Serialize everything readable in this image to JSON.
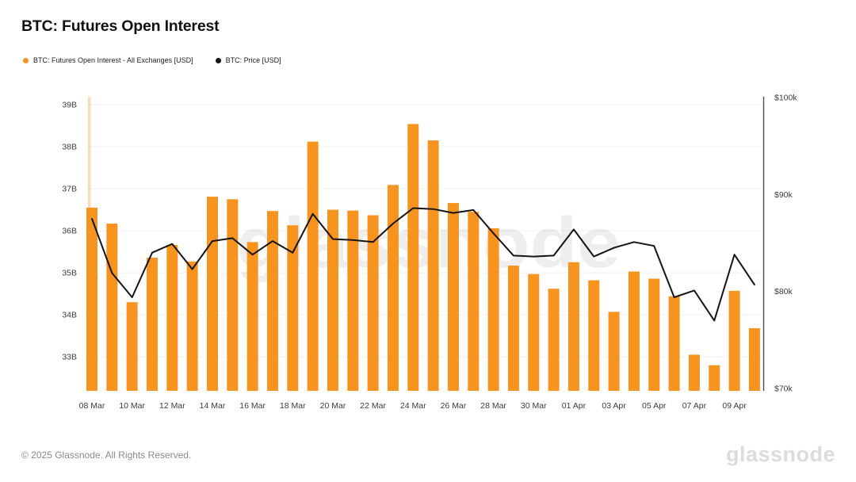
{
  "title": "BTC: Futures Open Interest",
  "legend": {
    "items": [
      {
        "label": "BTC: Futures Open Interest - All Exchanges [USD]",
        "color": "#f79420"
      },
      {
        "label": "BTC: Price [USD]",
        "color": "#141414"
      }
    ]
  },
  "watermark": {
    "text": "glassnode"
  },
  "footer": {
    "copyright": "© 2025 Glassnode. All Rights Reserved.",
    "wordmark": "glassnode"
  },
  "chart_data": {
    "type": "bar+line",
    "title": "BTC: Futures Open Interest",
    "grid": "horizontal",
    "legend_position": "top-left",
    "x_tick_every": 2,
    "categories": [
      "08 Mar",
      "09 Mar",
      "10 Mar",
      "11 Mar",
      "12 Mar",
      "13 Mar",
      "14 Mar",
      "15 Mar",
      "16 Mar",
      "17 Mar",
      "18 Mar",
      "19 Mar",
      "20 Mar",
      "21 Mar",
      "22 Mar",
      "23 Mar",
      "24 Mar",
      "25 Mar",
      "26 Mar",
      "27 Mar",
      "28 Mar",
      "29 Mar",
      "30 Mar",
      "31 Mar",
      "01 Apr",
      "02 Apr",
      "03 Apr",
      "04 Apr",
      "05 Apr",
      "06 Apr",
      "07 Apr",
      "08 Apr",
      "09 Apr",
      "10 Apr"
    ],
    "series": [
      {
        "name": "BTC: Futures Open Interest - All Exchanges [USD]",
        "type": "bar",
        "axis": "left",
        "unit": "billions USD",
        "color": "#f79420",
        "values": [
          36.55,
          36.17,
          34.3,
          35.36,
          35.66,
          35.27,
          36.81,
          36.75,
          35.73,
          36.47,
          36.13,
          38.12,
          36.5,
          36.48,
          36.37,
          37.09,
          38.54,
          38.15,
          36.66,
          36.45,
          36.06,
          35.17,
          34.97,
          34.62,
          35.25,
          34.82,
          34.07,
          35.03,
          34.86,
          34.44,
          33.05,
          32.8,
          34.57,
          33.68
        ]
      },
      {
        "name": "BTC: Price [USD]",
        "type": "line",
        "axis": "right",
        "unit": "thousands USD",
        "color": "#141414",
        "values": [
          87.5,
          81.9,
          79.4,
          84.0,
          84.9,
          82.3,
          85.2,
          85.5,
          83.8,
          85.2,
          84.0,
          88.0,
          85.4,
          85.3,
          85.1,
          87.0,
          88.6,
          88.5,
          88.1,
          88.4,
          86.0,
          83.7,
          83.6,
          83.7,
          86.4,
          83.6,
          84.5,
          85.1,
          84.7,
          79.4,
          80.1,
          77.0,
          83.8,
          80.7
        ]
      }
    ],
    "left_axis": {
      "range": [
        32.19,
        39.19
      ],
      "ticks": [
        {
          "v": 33,
          "label": "33B"
        },
        {
          "v": 34,
          "label": "34B"
        },
        {
          "v": 35,
          "label": "35B"
        },
        {
          "v": 36,
          "label": "36B"
        },
        {
          "v": 37,
          "label": "37B"
        },
        {
          "v": 38,
          "label": "38B"
        },
        {
          "v": 39,
          "label": "39B"
        }
      ]
    },
    "right_axis": {
      "range": [
        70,
        100
      ],
      "ticks": [
        {
          "v": 70,
          "label": "$70k"
        },
        {
          "v": 80,
          "label": "$80k"
        },
        {
          "v": 90,
          "label": "$90k"
        },
        {
          "v": 100,
          "label": "$100k"
        }
      ]
    },
    "colors": {
      "grid": "#f2f2f2",
      "right_spine": "#4d4d4d",
      "highlight_stripe": "#f79420",
      "watermark": "rgba(20,20,20,0.07)"
    }
  }
}
